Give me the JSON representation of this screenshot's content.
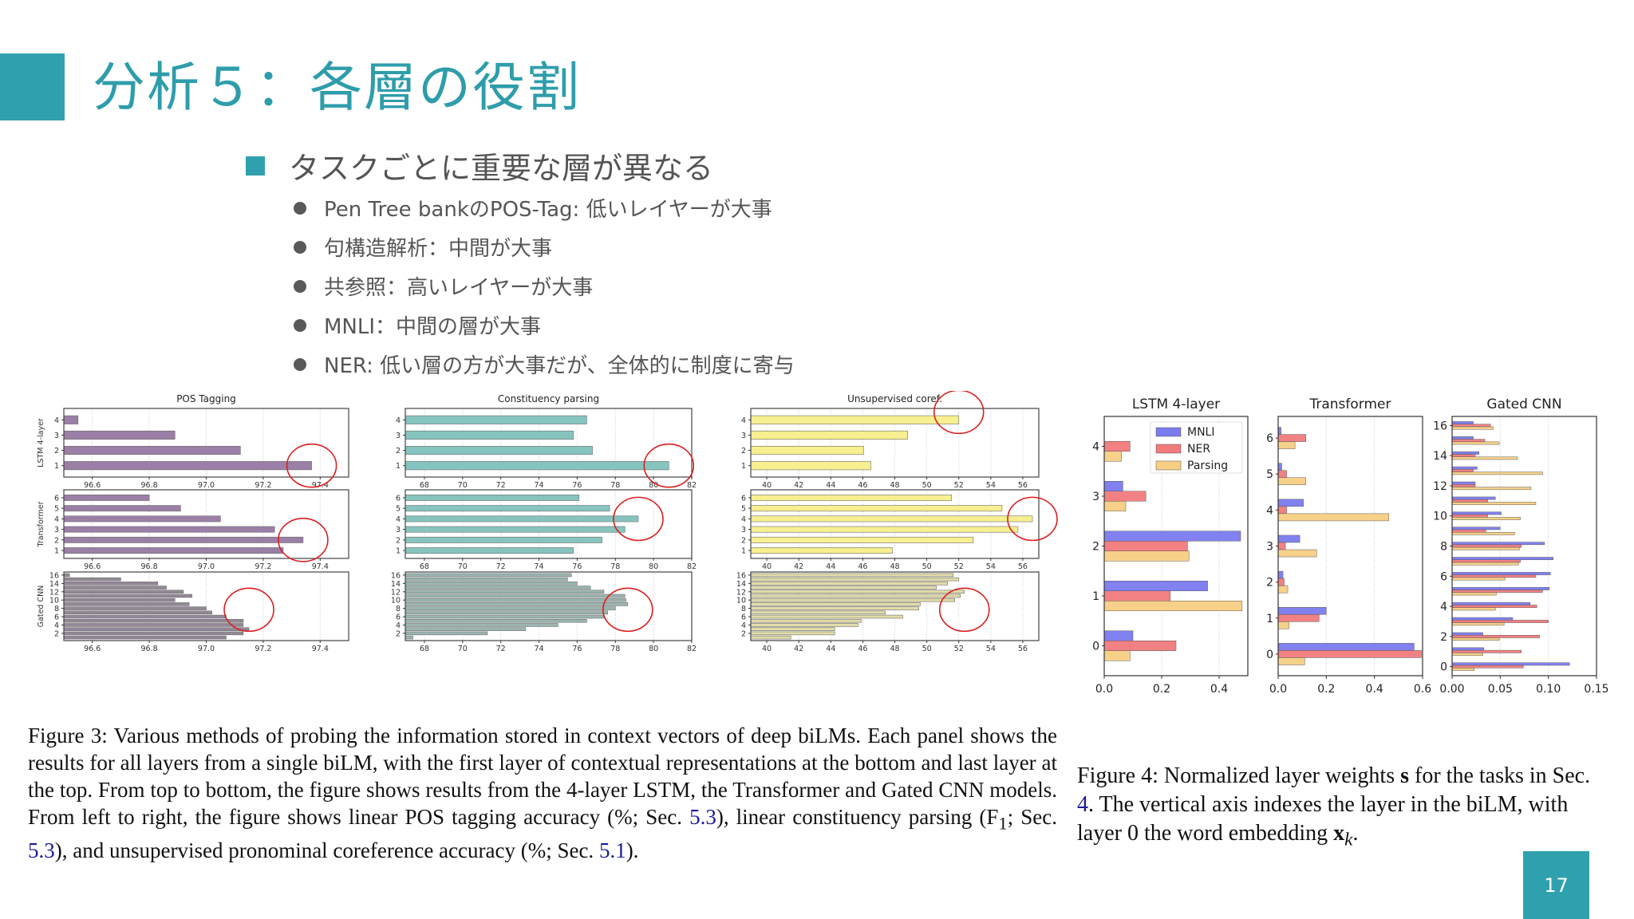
{
  "slide": {
    "title": "分析５：各層の役割",
    "main_bullet": "タスクごとに重要な層が異なる",
    "sub_bullets": [
      "Pen Tree bankのPOS-Tag: 低いレイヤーが大事",
      "句構造解析：中間が大事",
      "共参照：高いレイヤーが大事",
      "MNLI：中間の層が大事",
      "NER: 低い層の方が大事だが、全体的に制度に寄与"
    ],
    "page_number": "17",
    "accent_color": "#2fa1ae"
  },
  "captions": {
    "figure3": {
      "pre1": "Figure 3: Various methods of probing the information stored in context vectors of deep biLMs. Each panel shows the results for all layers from a single biLM, with the first layer of contextual representations at the bottom and last layer at the top. From top to bottom, the figure shows results from the 4-layer LSTM, the Transformer and Gated CNN models. From left to right, the figure shows linear POS tagging accuracy (%; Sec. ",
      "ref1": "5.3",
      "pre2": "), linear constituency parsing (F",
      "sub": "1",
      "pre3": "; Sec. ",
      "ref2": "5.3",
      "pre4": "), and unsupervised pronominal coreference accuracy (%; Sec. ",
      "ref3": "5.1",
      "post": ")."
    },
    "figure4": {
      "pre1": "Figure 4: Normalized layer weights ",
      "bold_s": "s",
      "pre2": " for the tasks in Sec. ",
      "ref1": "4",
      "pre3": ". The vertical axis indexes the layer in the biLM, with layer 0 the word embedding ",
      "xk": "x",
      "k": "k",
      "post": "."
    }
  },
  "chart_data": [
    {
      "type": "bar",
      "orientation": "horizontal",
      "title": "POS Tagging",
      "color": "#9b7fa6",
      "rows": [
        {
          "ylabel": "LSTM 4-layer",
          "categories": [
            "1",
            "2",
            "3",
            "4"
          ],
          "values": [
            97.37,
            97.12,
            96.89,
            96.55
          ],
          "yticks": [
            "1",
            "2",
            "3",
            "4"
          ],
          "highlight_layer": "1"
        },
        {
          "ylabel": "Transformer",
          "categories": [
            "1",
            "2",
            "3",
            "4",
            "5",
            "6"
          ],
          "values": [
            97.27,
            97.34,
            97.24,
            97.05,
            96.91,
            96.8
          ],
          "yticks": [
            "1",
            "2",
            "3",
            "4",
            "5",
            "6"
          ],
          "highlight_layer": "2"
        },
        {
          "ylabel": "Gated CNN",
          "categories": [
            "1",
            "2",
            "3",
            "4",
            "5",
            "6",
            "7",
            "8",
            "9",
            "10",
            "11",
            "12",
            "13",
            "14",
            "15",
            "16"
          ],
          "values": [
            97.07,
            97.13,
            97.15,
            97.13,
            97.13,
            97.07,
            97.02,
            97.0,
            96.94,
            96.89,
            96.95,
            96.92,
            96.86,
            96.83,
            96.7,
            96.52
          ],
          "yticks": [
            "2",
            "4",
            "6",
            "8",
            "10",
            "12",
            "14",
            "16"
          ],
          "highlight_layer": "3"
        }
      ],
      "xlim": [
        96.5,
        97.5
      ],
      "xticks": [
        "96.6",
        "96.8",
        "97.0",
        "97.2",
        "97.4"
      ],
      "xtick_values": [
        96.6,
        96.8,
        97.0,
        97.2,
        97.4
      ],
      "grid": "vertical dotted"
    },
    {
      "type": "bar",
      "orientation": "horizontal",
      "title": "Constituency parsing",
      "color": "#86c4bf",
      "rows": [
        {
          "ylabel": "LSTM 4-layer",
          "categories": [
            "1",
            "2",
            "3",
            "4"
          ],
          "values": [
            80.8,
            76.8,
            75.8,
            76.5
          ],
          "yticks": [
            "1",
            "2",
            "3",
            "4"
          ],
          "highlight_layer": "1"
        },
        {
          "ylabel": "Transformer",
          "categories": [
            "1",
            "2",
            "3",
            "4",
            "5",
            "6"
          ],
          "values": [
            75.8,
            77.3,
            78.5,
            79.2,
            77.7,
            76.1
          ],
          "yticks": [
            "1",
            "2",
            "3",
            "4",
            "5",
            "6"
          ],
          "highlight_layer": "4"
        },
        {
          "ylabel": "Gated CNN",
          "categories": [
            "1",
            "2",
            "3",
            "4",
            "5",
            "6",
            "7",
            "8",
            "9",
            "10",
            "11",
            "12",
            "13",
            "14",
            "15",
            "16"
          ],
          "values": [
            67.4,
            71.3,
            73.3,
            75.0,
            76.5,
            77.4,
            77.6,
            78.0,
            78.65,
            78.55,
            78.5,
            77.4,
            76.7,
            76.0,
            75.5,
            75.7
          ],
          "yticks": [
            "2",
            "4",
            "6",
            "8",
            "10",
            "12",
            "14",
            "16"
          ],
          "highlight_layer": "9"
        }
      ],
      "xlim": [
        67,
        82
      ],
      "xticks": [
        "68",
        "70",
        "72",
        "74",
        "76",
        "78",
        "80",
        "82"
      ],
      "xtick_values": [
        68,
        70,
        72,
        74,
        76,
        78,
        80,
        82
      ],
      "grid": "vertical dotted"
    },
    {
      "type": "bar",
      "orientation": "horizontal",
      "title": "Unsupervised coref.",
      "color": "#f7ef90",
      "rows": [
        {
          "ylabel": "LSTM 4-layer",
          "categories": [
            "1",
            "2",
            "3",
            "4"
          ],
          "values": [
            46.5,
            46.05,
            48.8,
            52.0
          ],
          "yticks": [
            "1",
            "2",
            "3",
            "4"
          ],
          "highlight_layer": "4"
        },
        {
          "ylabel": "Transformer",
          "categories": [
            "1",
            "2",
            "3",
            "4",
            "5",
            "6"
          ],
          "values": [
            47.85,
            52.9,
            55.7,
            56.6,
            54.7,
            51.55
          ],
          "yticks": [
            "1",
            "2",
            "3",
            "4",
            "5",
            "6"
          ],
          "highlight_layer": "4"
        },
        {
          "ylabel": "Gated CNN",
          "categories": [
            "1",
            "2",
            "3",
            "4",
            "5",
            "6",
            "7",
            "8",
            "9",
            "10",
            "11",
            "12",
            "13",
            "14",
            "15",
            "16"
          ],
          "values": [
            41.5,
            44.25,
            44.25,
            45.7,
            45.9,
            48.5,
            47.4,
            49.5,
            49.6,
            51.75,
            52.1,
            52.35,
            50.6,
            51.3,
            52.0,
            51.65
          ],
          "yticks": [
            "2",
            "4",
            "6",
            "8",
            "10",
            "12",
            "14",
            "16"
          ],
          "highlight_layer": "12"
        }
      ],
      "xlim": [
        39,
        57
      ],
      "xticks": [
        "40",
        "42",
        "44",
        "46",
        "48",
        "50",
        "52",
        "54",
        "56"
      ],
      "xtick_values": [
        40,
        42,
        44,
        46,
        48,
        50,
        52,
        54,
        56
      ],
      "grid": "vertical dotted"
    },
    {
      "type": "bar",
      "orientation": "horizontal",
      "title": "LSTM 4-layer",
      "categories": [
        "0",
        "1",
        "2",
        "3",
        "4"
      ],
      "series": [
        {
          "name": "MNLI",
          "color": "#7b7bf0",
          "values": [
            0.1,
            0.36,
            0.475,
            0.065,
            0.0
          ]
        },
        {
          "name": "NER",
          "color": "#f27b7e",
          "values": [
            0.25,
            0.23,
            0.29,
            0.145,
            0.09
          ]
        },
        {
          "name": "Parsing",
          "color": "#f7cf83",
          "values": [
            0.09,
            0.48,
            0.295,
            0.075,
            0.06
          ]
        }
      ],
      "xlim": [
        0,
        0.5
      ],
      "xticks": [
        "0.0",
        "0.2",
        "0.4"
      ],
      "xtick_values": [
        0,
        0.2,
        0.4
      ],
      "legend": [
        "MNLI",
        "NER",
        "Parsing"
      ],
      "legend_position": "upper right",
      "grid": "vertical dotted"
    },
    {
      "type": "bar",
      "orientation": "horizontal",
      "title": "Transformer",
      "categories": [
        "0",
        "1",
        "2",
        "3",
        "4",
        "5",
        "6"
      ],
      "series": [
        {
          "name": "MNLI",
          "color": "#7b7bf0",
          "values": [
            0.565,
            0.2,
            0.02,
            0.09,
            0.105,
            0.015,
            0.012
          ]
        },
        {
          "name": "NER",
          "color": "#f27b7e",
          "values": [
            0.595,
            0.17,
            0.025,
            0.03,
            0.035,
            0.035,
            0.115
          ]
        },
        {
          "name": "Parsing",
          "color": "#f7cf83",
          "values": [
            0.11,
            0.045,
            0.04,
            0.16,
            0.46,
            0.115,
            0.07
          ]
        }
      ],
      "xlim": [
        0,
        0.6
      ],
      "xticks": [
        "0.0",
        "0.2",
        "0.4",
        "0.6"
      ],
      "xtick_values": [
        0,
        0.2,
        0.4,
        0.6
      ],
      "grid": "vertical dotted"
    },
    {
      "type": "bar",
      "orientation": "horizontal",
      "title": "Gated CNN",
      "categories": [
        "0",
        "1",
        "2",
        "3",
        "4",
        "5",
        "6",
        "7",
        "8",
        "9",
        "10",
        "11",
        "12",
        "13",
        "14",
        "15",
        "16"
      ],
      "series": [
        {
          "name": "MNLI",
          "color": "#7b7bf0",
          "values": [
            0.122,
            0.033,
            0.032,
            0.063,
            0.081,
            0.101,
            0.102,
            0.105,
            0.096,
            0.05,
            0.051,
            0.045,
            0.024,
            0.026,
            0.028,
            0.022,
            0.022
          ]
        },
        {
          "name": "NER",
          "color": "#f27b7e",
          "values": [
            0.074,
            0.072,
            0.091,
            0.1,
            0.088,
            0.094,
            0.087,
            0.071,
            0.072,
            0.035,
            0.037,
            0.037,
            0.024,
            0.022,
            0.024,
            0.034,
            0.04
          ]
        },
        {
          "name": "Parsing",
          "color": "#f7cf83",
          "values": [
            0.023,
            0.032,
            0.049,
            0.054,
            0.045,
            0.046,
            0.055,
            0.069,
            0.07,
            0.065,
            0.071,
            0.087,
            0.082,
            0.094,
            0.068,
            0.049,
            0.043
          ]
        }
      ],
      "xlim": [
        0,
        0.15
      ],
      "xticks": [
        "0.00",
        "0.05",
        "0.10",
        "0.15"
      ],
      "xtick_values": [
        0,
        0.05,
        0.1,
        0.15
      ],
      "yticks": [
        "0",
        "2",
        "4",
        "6",
        "8",
        "10",
        "12",
        "14",
        "16"
      ],
      "grid": "vertical dotted"
    }
  ]
}
